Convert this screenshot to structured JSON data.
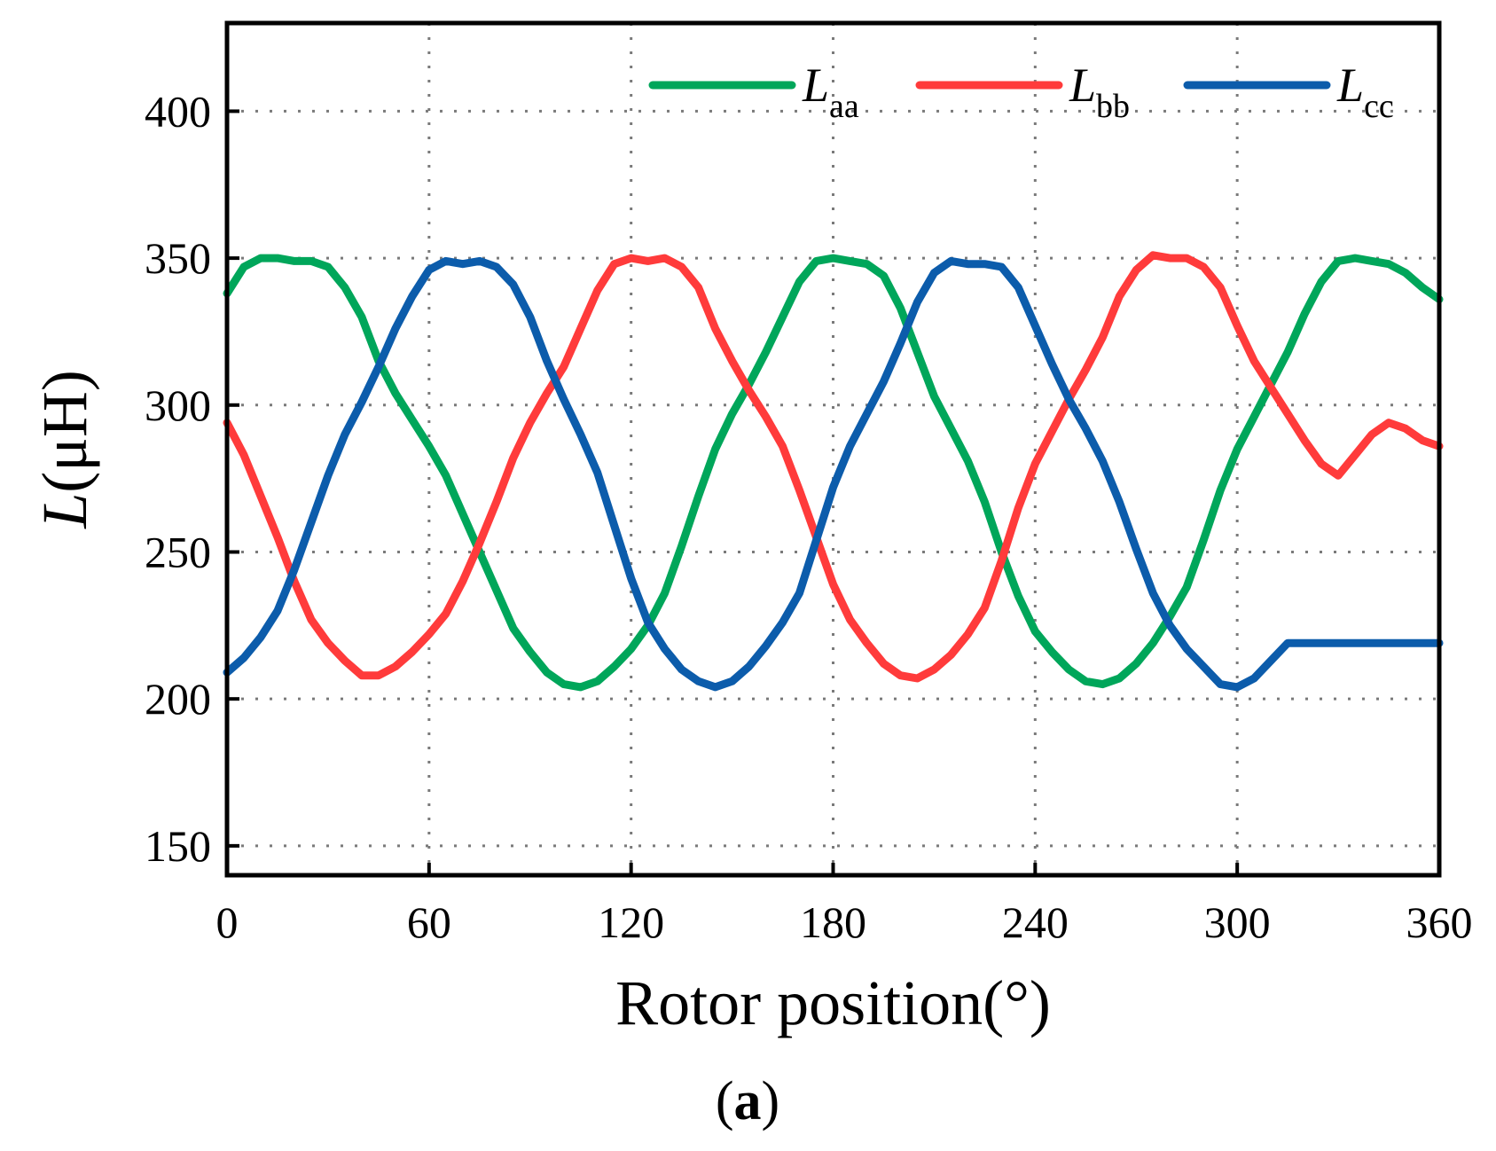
{
  "chart_data": {
    "type": "line",
    "title": "",
    "caption": {
      "open": "(",
      "letter": "a",
      "close": ")"
    },
    "xlabel": "Rotor position(°)",
    "ylabel": {
      "symbol": "L",
      "unit": "(μH)"
    },
    "xlim": [
      0,
      360
    ],
    "ylim": [
      140,
      430
    ],
    "xticks": [
      0,
      60,
      120,
      180,
      240,
      300,
      360
    ],
    "xtick_labels": [
      "0",
      "60",
      "120",
      "180",
      "240",
      "300",
      "360"
    ],
    "yticks": [
      150,
      200,
      250,
      300,
      350,
      400
    ],
    "ytick_labels": [
      "150",
      "200",
      "250",
      "300",
      "350",
      "400"
    ],
    "grid": true,
    "legend_position": "top-right",
    "x": [
      0,
      5,
      10,
      15,
      20,
      25,
      30,
      35,
      40,
      45,
      50,
      55,
      60,
      65,
      70,
      75,
      80,
      85,
      90,
      95,
      100,
      105,
      110,
      115,
      120,
      125,
      130,
      135,
      140,
      145,
      150,
      155,
      160,
      165,
      170,
      175,
      180,
      185,
      190,
      195,
      200,
      205,
      210,
      215,
      220,
      225,
      230,
      235,
      240,
      245,
      250,
      255,
      260,
      265,
      270,
      275,
      280,
      285,
      290,
      295,
      300,
      305,
      310,
      315,
      320,
      325,
      330,
      335,
      340,
      345,
      350,
      355,
      360
    ],
    "series": [
      {
        "name": "aa",
        "label_main": "L",
        "label_sub": "aa",
        "color": "#00a65a",
        "values": [
          338,
          347,
          350,
          350,
          349,
          349,
          347,
          340,
          330,
          315,
          304,
          295,
          286,
          276,
          263,
          250,
          237,
          224,
          216,
          209,
          205,
          204,
          206,
          211,
          217,
          225,
          236,
          252,
          269,
          285,
          297,
          307,
          318,
          330,
          342,
          349,
          350,
          349,
          348,
          344,
          333,
          318,
          303,
          292,
          281,
          267,
          250,
          235,
          223,
          216,
          210,
          206,
          205,
          207,
          212,
          219,
          228,
          238,
          254,
          271,
          285,
          296,
          307,
          318,
          331,
          342,
          349,
          350,
          349,
          348,
          345,
          340,
          336
        ]
      },
      {
        "name": "bb",
        "label_main": "L",
        "label_sub": "bb",
        "color": "#ff3b3b",
        "values": [
          294,
          283,
          269,
          255,
          240,
          227,
          219,
          213,
          208,
          208,
          211,
          216,
          222,
          229,
          240,
          253,
          267,
          282,
          294,
          304,
          313,
          326,
          339,
          348,
          350,
          349,
          350,
          347,
          340,
          326,
          315,
          305,
          296,
          286,
          271,
          255,
          239,
          227,
          219,
          212,
          208,
          207,
          210,
          215,
          222,
          231,
          247,
          265,
          280,
          291,
          302,
          312,
          323,
          337,
          346,
          351,
          350,
          350,
          347,
          340,
          327,
          315,
          306,
          297,
          288,
          280,
          276,
          283,
          290,
          294,
          292,
          288,
          286
        ]
      },
      {
        "name": "cc",
        "label_main": "L",
        "label_sub": "cc",
        "color": "#0c5cab",
        "values": [
          209,
          214,
          221,
          230,
          244,
          260,
          276,
          290,
          301,
          313,
          326,
          337,
          346,
          349,
          348,
          349,
          347,
          341,
          330,
          315,
          302,
          290,
          277,
          259,
          241,
          226,
          217,
          210,
          206,
          204,
          206,
          211,
          218,
          226,
          236,
          254,
          272,
          286,
          297,
          308,
          321,
          335,
          345,
          349,
          348,
          348,
          347,
          340,
          327,
          314,
          302,
          292,
          281,
          267,
          251,
          236,
          225,
          217,
          211,
          205,
          204,
          207,
          213,
          219,
          219,
          219,
          219,
          219,
          219,
          219,
          219,
          219,
          219
        ]
      }
    ]
  }
}
